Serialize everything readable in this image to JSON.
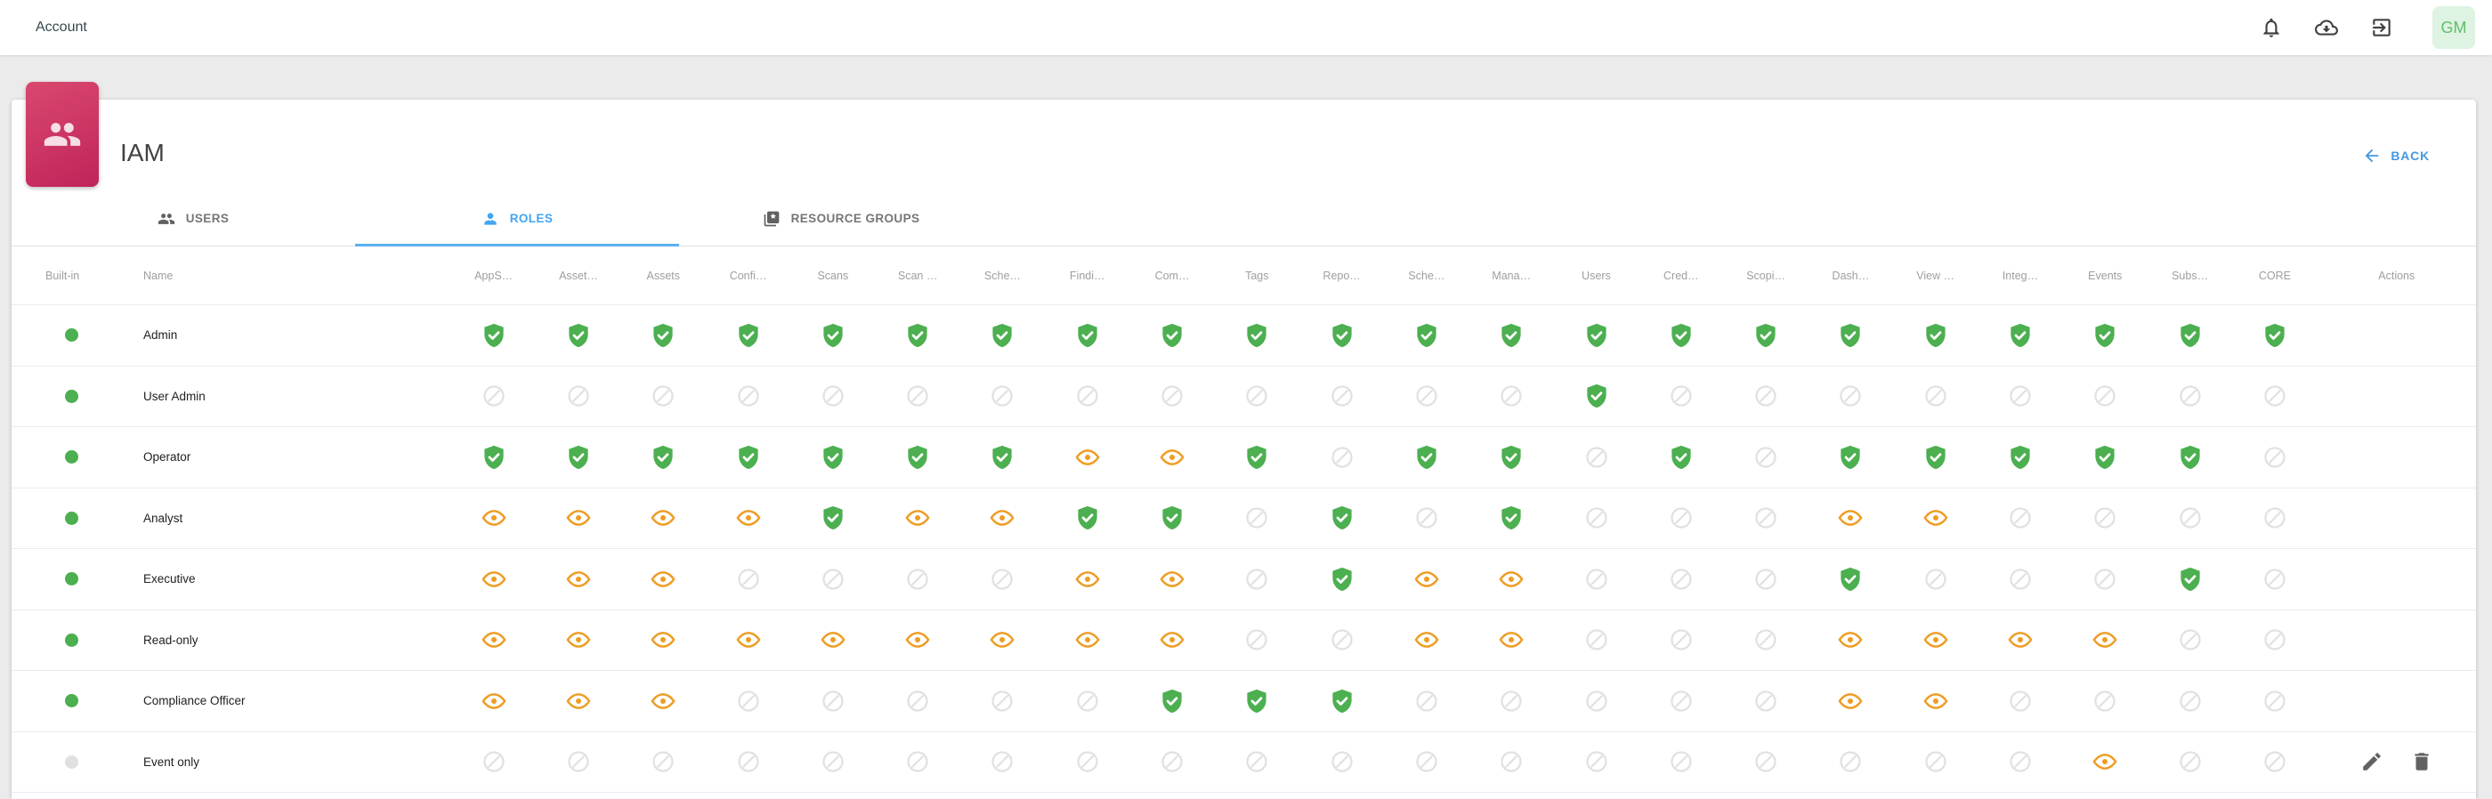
{
  "topbar": {
    "title": "Account",
    "icons": [
      {
        "name": "notifications-bell-icon"
      },
      {
        "name": "cloud-download-icon"
      },
      {
        "name": "logout-icon"
      }
    ],
    "avatar_initials": "GM"
  },
  "header": {
    "title": "IAM",
    "back_label": "BACK"
  },
  "tabs": [
    {
      "label": "USERS",
      "icon": "users-group-icon",
      "active": false
    },
    {
      "label": "ROLES",
      "icon": "role-person-icon",
      "active": true
    },
    {
      "label": "RESOURCE GROUPS",
      "icon": "resource-groups-card-icon",
      "active": false
    }
  ],
  "table": {
    "columns": [
      "Built-in",
      "Name",
      "AppS…",
      "Asset…",
      "Assets",
      "Confi…",
      "Scans",
      "Scan …",
      "Sche…",
      "Findi…",
      "Com…",
      "Tags",
      "Repo…",
      "Sche…",
      "Mana…",
      "Users",
      "Cred…",
      "Scopi…",
      "Dash…",
      "View …",
      "Integ…",
      "Events",
      "Subs…",
      "CORE",
      "Actions"
    ],
    "permission_legend": {
      "full": "full access (green shield check)",
      "view": "view only (orange eye)",
      "none": "no access (gray prohibited circle)"
    },
    "rows": [
      {
        "name": "Admin",
        "builtin": true,
        "permissions": [
          "full",
          "full",
          "full",
          "full",
          "full",
          "full",
          "full",
          "full",
          "full",
          "full",
          "full",
          "full",
          "full",
          "full",
          "full",
          "full",
          "full",
          "full",
          "full",
          "full",
          "full",
          "full"
        ],
        "actions": []
      },
      {
        "name": "User Admin",
        "builtin": true,
        "permissions": [
          "none",
          "none",
          "none",
          "none",
          "none",
          "none",
          "none",
          "none",
          "none",
          "none",
          "none",
          "none",
          "none",
          "full",
          "none",
          "none",
          "none",
          "none",
          "none",
          "none",
          "none",
          "none"
        ],
        "actions": []
      },
      {
        "name": "Operator",
        "builtin": true,
        "permissions": [
          "full",
          "full",
          "full",
          "full",
          "full",
          "full",
          "full",
          "view",
          "view",
          "full",
          "none",
          "full",
          "full",
          "none",
          "full",
          "none",
          "full",
          "full",
          "full",
          "full",
          "full",
          "none"
        ],
        "actions": []
      },
      {
        "name": "Analyst",
        "builtin": true,
        "permissions": [
          "view",
          "view",
          "view",
          "view",
          "full",
          "view",
          "view",
          "full",
          "full",
          "none",
          "full",
          "none",
          "full",
          "none",
          "none",
          "none",
          "view",
          "view",
          "none",
          "none",
          "none",
          "none"
        ],
        "actions": []
      },
      {
        "name": "Executive",
        "builtin": true,
        "permissions": [
          "view",
          "view",
          "view",
          "none",
          "none",
          "none",
          "none",
          "view",
          "view",
          "none",
          "full",
          "view",
          "view",
          "none",
          "none",
          "none",
          "full",
          "none",
          "none",
          "none",
          "full",
          "none"
        ],
        "actions": []
      },
      {
        "name": "Read-only",
        "builtin": true,
        "permissions": [
          "view",
          "view",
          "view",
          "view",
          "view",
          "view",
          "view",
          "view",
          "view",
          "none",
          "none",
          "view",
          "view",
          "none",
          "none",
          "none",
          "view",
          "view",
          "view",
          "view",
          "none",
          "none"
        ],
        "actions": []
      },
      {
        "name": "Compliance Officer",
        "builtin": true,
        "permissions": [
          "view",
          "view",
          "view",
          "none",
          "none",
          "none",
          "none",
          "none",
          "full",
          "full",
          "full",
          "none",
          "none",
          "none",
          "none",
          "none",
          "view",
          "view",
          "none",
          "none",
          "none",
          "none"
        ],
        "actions": []
      },
      {
        "name": "Event only",
        "builtin": false,
        "permissions": [
          "none",
          "none",
          "none",
          "none",
          "none",
          "none",
          "none",
          "none",
          "none",
          "none",
          "none",
          "none",
          "none",
          "none",
          "none",
          "none",
          "none",
          "none",
          "none",
          "view",
          "none",
          "none"
        ],
        "actions": [
          "edit",
          "delete"
        ]
      }
    ]
  },
  "colors": {
    "accent_blue": "#42a5f5",
    "full_green": "#4caf50",
    "view_orange": "#ef9c23",
    "none_gray": "#e0e0e0",
    "tile_pink_start": "#d9486f",
    "tile_pink_end": "#c02459",
    "avatar_bg": "#def3e2",
    "avatar_text": "#5fbe68"
  }
}
